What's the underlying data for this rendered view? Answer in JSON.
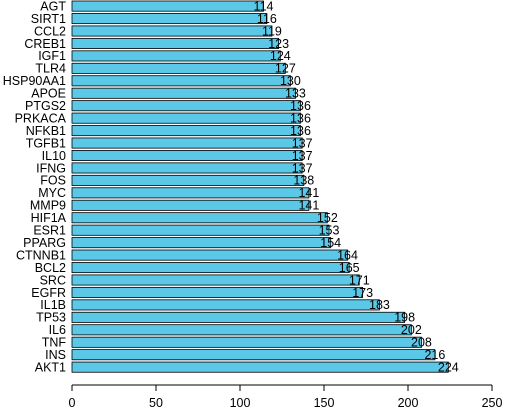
{
  "chart_data": {
    "type": "bar",
    "orientation": "horizontal",
    "title": "",
    "xlabel": "",
    "ylabel": "",
    "xlim": [
      0,
      250
    ],
    "x_ticks": [
      0,
      50,
      100,
      150,
      200,
      250
    ],
    "grid": false,
    "legend": "none",
    "bar_color": "#5bc8e8",
    "bar_edge_color": "#000000",
    "categories": [
      "AGT",
      "SIRT1",
      "CCL2",
      "CREB1",
      "IGF1",
      "TLR4",
      "HSP90AA1",
      "APOE",
      "PTGS2",
      "PRKACA",
      "NFKB1",
      "TGFB1",
      "IL10",
      "IFNG",
      "FOS",
      "MYC",
      "MMP9",
      "HIF1A",
      "ESR1",
      "PPARG",
      "CTNNB1",
      "BCL2",
      "SRC",
      "EGFR",
      "IL1B",
      "TP53",
      "IL6",
      "TNF",
      "INS",
      "AKT1"
    ],
    "values": [
      114,
      116,
      119,
      123,
      124,
      127,
      130,
      133,
      136,
      136,
      136,
      137,
      137,
      137,
      138,
      141,
      141,
      152,
      153,
      154,
      164,
      165,
      171,
      173,
      183,
      198,
      202,
      208,
      216,
      224
    ]
  }
}
